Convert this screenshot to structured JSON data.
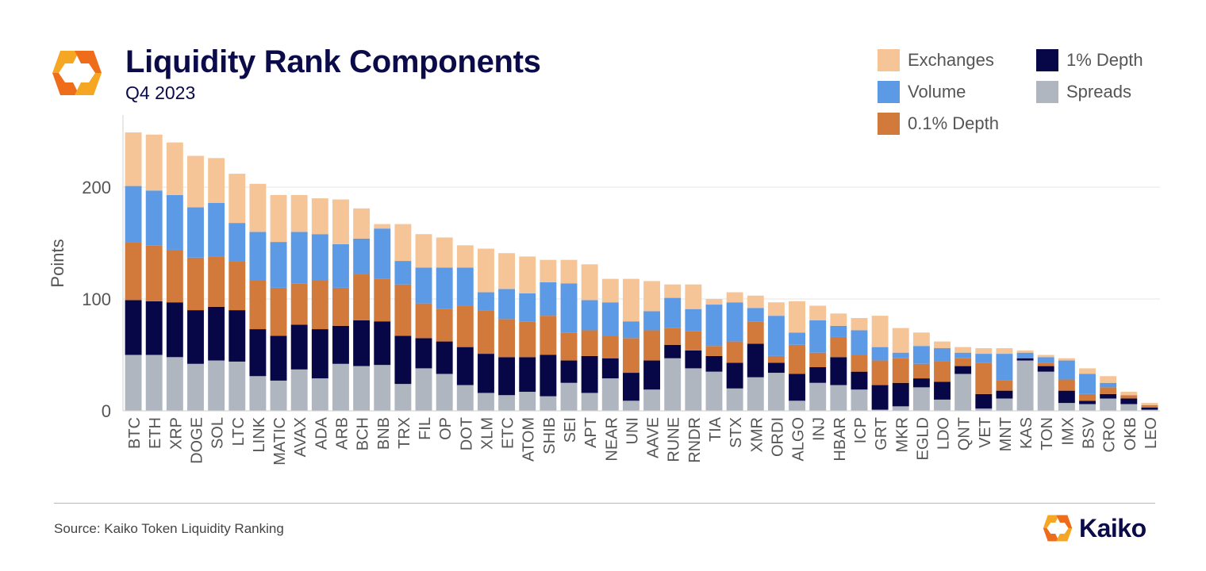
{
  "header": {
    "title": "Liquidity Rank Components",
    "subtitle": "Q4 2023"
  },
  "legend": [
    {
      "label": "Exchanges",
      "color": "#f5c597"
    },
    {
      "label": "1% Depth",
      "color": "#070748"
    },
    {
      "label": "Volume",
      "color": "#5d9ae6"
    },
    {
      "label": "Spreads",
      "color": "#b0b6c0"
    },
    {
      "label": "0.1% Depth",
      "color": "#d17a3c"
    }
  ],
  "footer": {
    "source": "Source: Kaiko Token Liquidity Ranking",
    "brand": "Kaiko",
    "brand_colors": [
      "#f5a623",
      "#ef6c1a"
    ]
  },
  "chart_data": {
    "type": "bar",
    "stacked": true,
    "ylabel": "Points",
    "ylim": [
      0,
      260
    ],
    "yticks": [
      0,
      100,
      200
    ],
    "grid": "horizontal",
    "legend_position": "top-right",
    "categories": [
      "BTC",
      "ETH",
      "XRP",
      "DOGE",
      "SOL",
      "LTC",
      "LINK",
      "MATIC",
      "AVAX",
      "ADA",
      "ARB",
      "BCH",
      "BNB",
      "TRX",
      "FIL",
      "OP",
      "DOT",
      "XLM",
      "ETC",
      "ATOM",
      "SHIB",
      "SEI",
      "APT",
      "NEAR",
      "UNI",
      "AAVE",
      "RUNE",
      "RNDR",
      "TIA",
      "STX",
      "XMR",
      "ORDI",
      "ALGO",
      "INJ",
      "HBAR",
      "ICP",
      "GRT",
      "MKR",
      "EGLD",
      "LDO",
      "QNT",
      "VET",
      "MNT",
      "KAS",
      "TON",
      "IMX",
      "BSV",
      "CRO",
      "OKB",
      "LEO"
    ],
    "series": [
      {
        "name": "Spreads",
        "color": "#b0b6c0",
        "values": [
          50,
          50,
          48,
          42,
          45,
          44,
          31,
          27,
          37,
          29,
          42,
          40,
          41,
          24,
          38,
          33,
          23,
          16,
          14,
          17,
          13,
          25,
          16,
          29,
          9,
          19,
          47,
          38,
          35,
          20,
          30,
          34,
          9,
          25,
          23,
          19,
          1,
          4,
          21,
          10,
          33,
          2,
          11,
          45,
          35,
          7,
          6,
          11,
          6,
          1
        ]
      },
      {
        "name": "1% Depth",
        "color": "#070748",
        "values": [
          49,
          48,
          49,
          48,
          48,
          46,
          42,
          40,
          40,
          44,
          34,
          41,
          39,
          43,
          27,
          29,
          34,
          35,
          34,
          31,
          37,
          20,
          33,
          18,
          25,
          26,
          12,
          16,
          14,
          23,
          30,
          9,
          24,
          14,
          25,
          16,
          22,
          21,
          8,
          16,
          7,
          13,
          7,
          2,
          5,
          11,
          3,
          4,
          5,
          2
        ]
      },
      {
        "name": "0.1% Depth",
        "color": "#d17a3c",
        "values": [
          52,
          50,
          47,
          47,
          45,
          44,
          44,
          43,
          37,
          44,
          34,
          41,
          38,
          46,
          31,
          29,
          37,
          39,
          34,
          32,
          35,
          25,
          23,
          20,
          31,
          27,
          15,
          17,
          9,
          19,
          20,
          6,
          26,
          13,
          18,
          15,
          22,
          22,
          13,
          18,
          7,
          28,
          9,
          0,
          3,
          10,
          6,
          6,
          3,
          2
        ]
      },
      {
        "name": "Volume",
        "color": "#5d9ae6",
        "values": [
          50,
          49,
          49,
          45,
          48,
          34,
          43,
          41,
          46,
          41,
          39,
          32,
          45,
          21,
          32,
          37,
          34,
          16,
          27,
          25,
          30,
          44,
          27,
          30,
          15,
          17,
          27,
          20,
          37,
          35,
          12,
          36,
          11,
          29,
          10,
          22,
          12,
          5,
          16,
          12,
          5,
          8,
          24,
          5,
          5,
          17,
          18,
          4,
          0,
          0
        ]
      },
      {
        "name": "Exchanges",
        "color": "#f5c597",
        "values": [
          48,
          50,
          47,
          46,
          40,
          44,
          43,
          42,
          33,
          32,
          40,
          27,
          4,
          33,
          30,
          27,
          20,
          39,
          32,
          33,
          20,
          21,
          32,
          21,
          38,
          27,
          12,
          22,
          5,
          9,
          11,
          12,
          28,
          13,
          11,
          11,
          28,
          22,
          12,
          6,
          5,
          5,
          5,
          2,
          2,
          2,
          5,
          6,
          3,
          2
        ]
      }
    ]
  }
}
